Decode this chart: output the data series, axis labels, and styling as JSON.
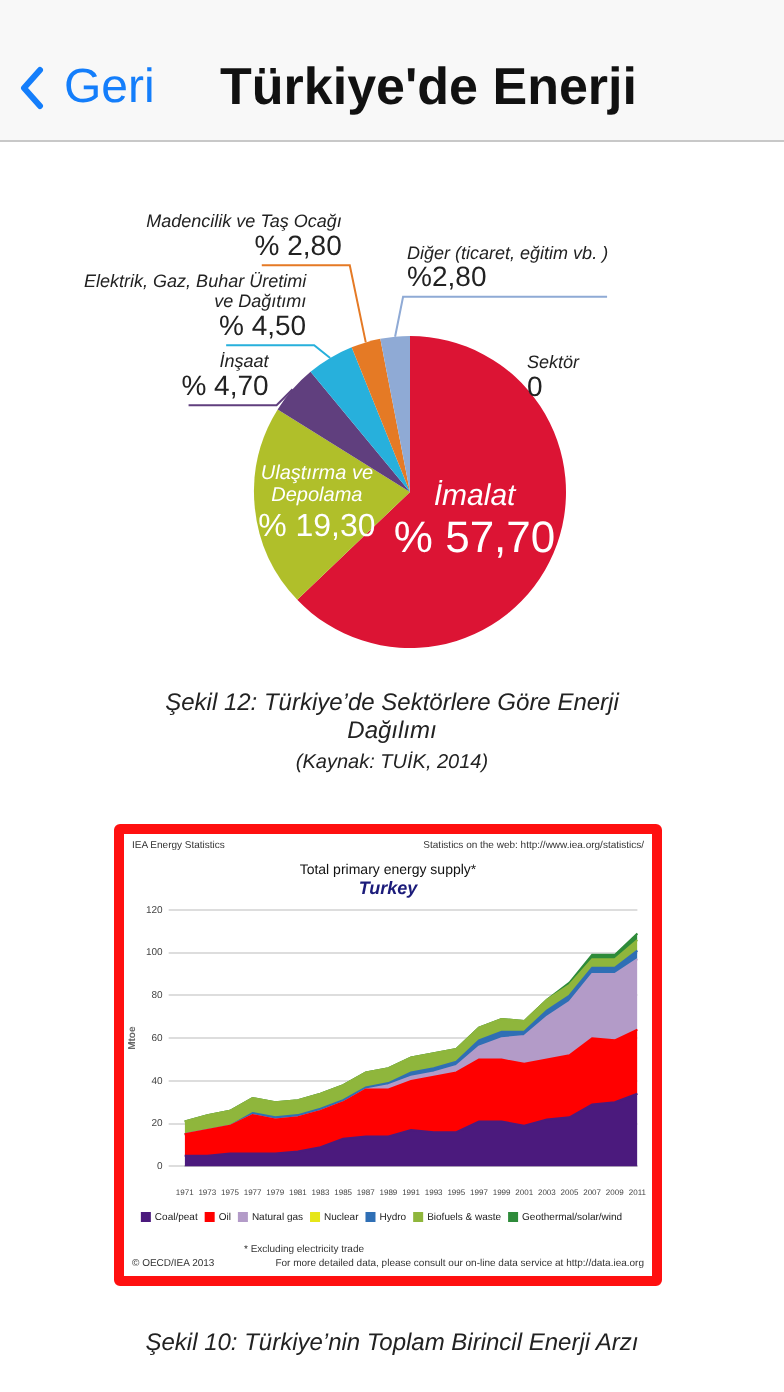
{
  "chart_data": [
    {
      "type": "pie",
      "title": "Şekil 12: Türkiye’de Sektörlere Göre Enerji Dağılımı",
      "annotations": [
        "Türkiye'de Enerji",
        "Geri",
        "(Kaynak: TUİK, 2014)"
      ],
      "categories": [
        "İmalat",
        "Ulaştırma ve Depolama",
        "İnşaat",
        "Elektrik, Gaz, Buhar Üretimi ve Dağıtımı",
        "Madencilik ve Taş Ocağı",
        "Diğer (ticaret, eğitim vb. )",
        "Sektör"
      ],
      "values": [
        57.7,
        19.3,
        4.7,
        4.5,
        2.8,
        2.8,
        0
      ],
      "value_labels": [
        "% 57,70",
        "% 19,30",
        "% 4,70",
        "% 4,50",
        "% 2,80",
        "%2,80",
        "0"
      ],
      "colors": [
        "#dc1434",
        "#b0bf2a",
        "#603f7e",
        "#27b0dc",
        "#e57a25",
        "#8faad5",
        "#8faad5"
      ]
    },
    {
      "type": "area",
      "stacked": true,
      "title": "Total primary energy supply*",
      "subtitle": "Turkey",
      "ylabel": "Mtoe",
      "annotations": [
        "IEA Energy Statistics",
        "Statistics on the web: http://www.iea.org/statistics/",
        "* Excluding electricity trade",
        "© OECD/IEA 2013",
        "For more detailed data, please consult our on-line data service at http://data.iea.org",
        "Şekil 10: Türkiye’nin Toplam Birincil Enerji Arzı"
      ],
      "categories": [
        "1971",
        "1973",
        "1975",
        "1977",
        "1979",
        "1981",
        "1983",
        "1985",
        "1987",
        "1989",
        "1991",
        "1993",
        "1995",
        "1997",
        "1999",
        "2001",
        "2003",
        "2005",
        "2007",
        "2009",
        "2011"
      ],
      "ylim": [
        0,
        120
      ],
      "yticks": [
        0,
        20,
        40,
        60,
        80,
        100,
        120
      ],
      "grid": "y",
      "legend": "bottom",
      "marker": "none",
      "series": [
        {
          "name": "Coal/peat",
          "color": "#4b1a7d",
          "values": [
            5,
            5,
            6,
            6,
            6,
            7,
            9,
            13,
            14,
            14,
            17,
            16,
            16,
            21,
            21,
            19,
            22,
            23,
            29,
            30,
            34
          ]
        },
        {
          "name": "Oil",
          "color": "#ff0000",
          "values": [
            10,
            12,
            13,
            18,
            16,
            16,
            17,
            17,
            22,
            22,
            23,
            26,
            28,
            29,
            29,
            29,
            28,
            29,
            31,
            29,
            30
          ]
        },
        {
          "name": "Natural gas",
          "color": "#b39bc8",
          "values": [
            0,
            0,
            0,
            0,
            0,
            0,
            0,
            0,
            0,
            2,
            2,
            2,
            3,
            6,
            10,
            13,
            20,
            25,
            30,
            31,
            33
          ]
        },
        {
          "name": "Nuclear",
          "color": "#e6e619",
          "values": [
            null,
            null,
            null,
            null,
            null,
            null,
            null,
            null,
            null,
            null,
            null,
            null,
            null,
            null,
            null,
            null,
            null,
            null,
            null,
            null,
            null
          ]
        },
        {
          "name": "Hydro",
          "color": "#2f6fb5",
          "values": [
            0,
            0,
            0,
            1,
            1,
            1,
            1,
            1,
            1,
            1,
            2,
            2,
            2,
            3,
            3,
            2,
            3,
            3,
            3,
            3,
            4
          ]
        },
        {
          "name": "Biofuels & waste",
          "color": "#8fb63c",
          "values": [
            6,
            7,
            7,
            7,
            7,
            7,
            7,
            7,
            7,
            7,
            7,
            7,
            6,
            6,
            6,
            5,
            5,
            5,
            4,
            4,
            5
          ]
        },
        {
          "name": "Geothermal/solar/wind",
          "color": "#2e8b3a",
          "values": [
            0,
            0,
            0,
            0,
            0,
            0,
            0,
            0,
            0,
            0,
            0,
            0,
            0,
            0,
            0,
            0,
            0,
            1,
            2,
            2,
            3
          ]
        }
      ]
    }
  ]
}
